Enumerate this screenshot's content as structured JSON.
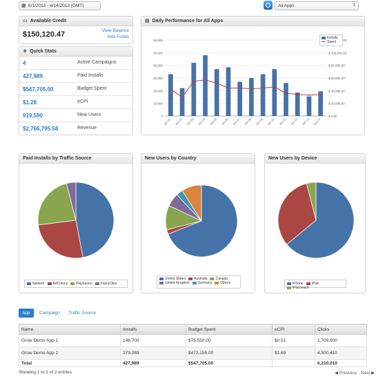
{
  "toolbar": {
    "date_range": "6/1/2013 - 6/14/2013 (GMT)",
    "app_select": "All Apps"
  },
  "credit": {
    "title": "Available Credit",
    "amount": "$150,120.47",
    "view_balance": "View Balance",
    "add_funds": "Add Funds"
  },
  "quick_stats": {
    "title": "Quick Stats",
    "items": [
      {
        "value": "4",
        "label": "Active Campaigns"
      },
      {
        "value": "427,989",
        "label": "Paid Installs"
      },
      {
        "value": "$547,705.00",
        "label": "Budget Spent"
      },
      {
        "value": "$1.28",
        "label": "eCPI"
      },
      {
        "value": "919,590",
        "label": "New Users"
      },
      {
        "value": "$2,766,795.58",
        "label": "Revenue"
      }
    ]
  },
  "daily": {
    "title": "Daily Performance for All Apps"
  },
  "pies": {
    "traffic_title": "Paid Installs by Traffic Source",
    "country_title": "New Users by Country",
    "device_title": "New Users by Device"
  },
  "colors": {
    "blue": "#4572a7",
    "red": "#aa4643",
    "green": "#89a54e",
    "purple": "#80699b",
    "teal": "#3d96ae",
    "orange": "#db843d",
    "link": "#2a7bc8"
  },
  "chart_data": [
    {
      "type": "bar",
      "title": "Daily Performance for All Apps",
      "categories": [
        "Jun 01",
        "Jun 02",
        "Jun 03",
        "Jun 04",
        "Jun 05",
        "Jun 06",
        "Jun 07",
        "Jun 08",
        "Jun 09",
        "Jun 10",
        "Jun 11",
        "Jun 12",
        "Jun 13",
        "Jun 14"
      ],
      "series": [
        {
          "name": "Installs",
          "axis": "left",
          "values": [
            33000,
            22000,
            42000,
            48000,
            37000,
            38500,
            27000,
            30000,
            33000,
            37000,
            26000,
            18500,
            15500,
            19500
          ]
        },
        {
          "name": "Spent",
          "axis": "right",
          "type": "line",
          "values": [
            42000,
            30000,
            55000,
            57000,
            52000,
            44000,
            44000,
            43000,
            44000,
            46000,
            36000,
            34000,
            33000,
            34000
          ]
        }
      ],
      "ylim_left": [
        0,
        60000
      ],
      "yticks_left": [
        "0",
        "10,000",
        "20,000",
        "30,000",
        "40,000",
        "50,000",
        "60,000"
      ],
      "ylim_right": [
        0,
        120000
      ],
      "yticks_right": [
        "$ 0.00",
        "$ 20,000.00",
        "$ 40,000.00",
        "$ 60,000.00",
        "$ 80,000.00",
        "$ 100,000.00",
        "$ 120,000.00"
      ],
      "legend": "top-right",
      "grid": true
    },
    {
      "type": "pie",
      "title": "Paid Installs by Traffic Source",
      "slices": [
        {
          "label": "NativeX",
          "value": 47,
          "color": "#4572a7"
        },
        {
          "label": "AdColony",
          "value": 26,
          "color": "#aa4643"
        },
        {
          "label": "Playhaven",
          "value": 23,
          "color": "#89a54e"
        },
        {
          "label": "FlurryClips",
          "value": 4,
          "color": "#80699b"
        }
      ]
    },
    {
      "type": "pie",
      "title": "New Users by Country",
      "slices": [
        {
          "label": "United States",
          "value": 69,
          "color": "#4572a7"
        },
        {
          "label": "Australia",
          "value": 2,
          "color": "#aa4643"
        },
        {
          "label": "Canada",
          "value": 11,
          "color": "#89a54e"
        },
        {
          "label": "United Kingdom",
          "value": 6,
          "color": "#80699b"
        },
        {
          "label": "Germany",
          "value": 3,
          "color": "#3d96ae"
        },
        {
          "label": "Others",
          "value": 9,
          "color": "#db843d"
        }
      ]
    },
    {
      "type": "pie",
      "title": "New Users by Device",
      "slices": [
        {
          "label": "iPhone",
          "value": 64,
          "color": "#4572a7"
        },
        {
          "label": "iPad",
          "value": 32,
          "color": "#aa4643"
        },
        {
          "label": "iPod touch",
          "value": 4,
          "color": "#89a54e"
        }
      ]
    }
  ],
  "tabs": {
    "app": "App",
    "campaign": "Campaign",
    "traffic_source": "Traffic Source"
  },
  "table": {
    "headers": [
      "Name",
      "Installs",
      "Budget Spent",
      "eCPI",
      "Clicks"
    ],
    "rows": [
      [
        "Grow Demo App 1",
        "148,700",
        "$75,550.00",
        "$0.51",
        "1,709,600"
      ],
      [
        "Grow Demo App 2",
        "279,289",
        "$472,155.00",
        "$1.69",
        "4,500,410"
      ]
    ],
    "total": [
      "Total",
      "427,989",
      "$547,705.00",
      "",
      "6,210,010"
    ]
  },
  "footer": {
    "showing": "Showing 1 to 2 of 2 entries",
    "previous": "◀ Previous",
    "next": "Next ▶"
  }
}
